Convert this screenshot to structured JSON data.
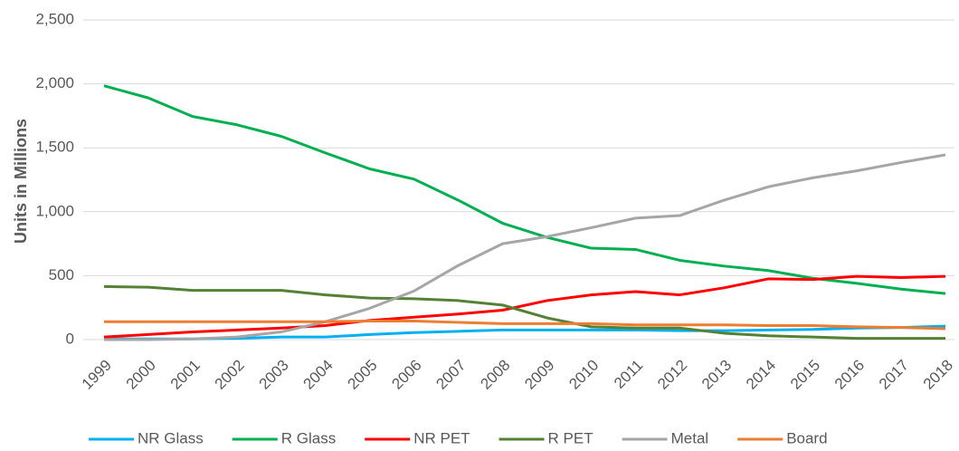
{
  "chart_data": {
    "type": "line",
    "y_axis_label": "Units in Millions",
    "categories": [
      "1999",
      "2000",
      "2001",
      "2002",
      "2003",
      "2004",
      "2005",
      "2006",
      "2007",
      "2008",
      "2009",
      "2010",
      "2011",
      "2012",
      "2013",
      "2014",
      "2015",
      "2016",
      "2017",
      "2018"
    ],
    "series": [
      {
        "name": "NR Glass",
        "color": "#00b0f0",
        "values": [
          5,
          5,
          5,
          10,
          20,
          20,
          40,
          55,
          65,
          75,
          75,
          75,
          75,
          70,
          70,
          75,
          80,
          90,
          95,
          105
        ]
      },
      {
        "name": "R Glass",
        "color": "#00b050",
        "values": [
          1985,
          1890,
          1745,
          1680,
          1590,
          1460,
          1335,
          1255,
          1090,
          910,
          800,
          715,
          705,
          620,
          575,
          540,
          480,
          440,
          395,
          360
        ]
      },
      {
        "name": "NR PET",
        "color": "#ff0000",
        "values": [
          20,
          40,
          60,
          75,
          90,
          110,
          150,
          175,
          200,
          230,
          305,
          350,
          375,
          350,
          405,
          475,
          470,
          495,
          485,
          495
        ]
      },
      {
        "name": "R PET",
        "color": "#548235",
        "values": [
          415,
          410,
          385,
          385,
          385,
          350,
          325,
          320,
          305,
          270,
          170,
          100,
          90,
          90,
          50,
          30,
          20,
          10,
          10,
          10
        ]
      },
      {
        "name": "Metal",
        "color": "#a6a6a6",
        "values": [
          0,
          0,
          5,
          20,
          60,
          140,
          245,
          380,
          580,
          750,
          805,
          875,
          950,
          970,
          1090,
          1195,
          1265,
          1320,
          1385,
          1445
        ]
      },
      {
        "name": "Board",
        "color": "#ed7d31",
        "values": [
          140,
          140,
          140,
          140,
          140,
          140,
          145,
          145,
          135,
          125,
          125,
          125,
          115,
          115,
          115,
          110,
          110,
          100,
          95,
          85
        ]
      }
    ],
    "ylim": [
      0,
      2500
    ],
    "yticks": [
      0,
      500,
      {
        "value": 1000,
        "label": "1,000"
      },
      {
        "value": 1500,
        "label": "1,500"
      },
      {
        "value": 2000,
        "label": "2,000"
      },
      {
        "value": 2500,
        "label": "2,500"
      }
    ],
    "grid": true,
    "legend": "bottom"
  }
}
